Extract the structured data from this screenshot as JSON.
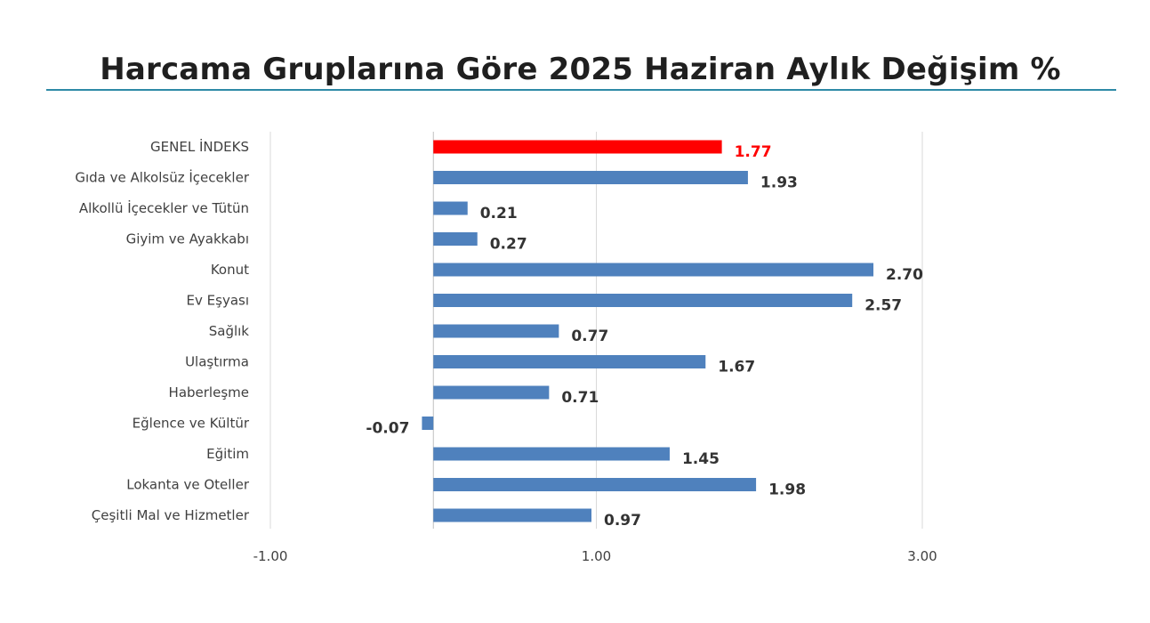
{
  "chart_data": {
    "type": "bar",
    "orientation": "horizontal",
    "title": "Harcama Gruplarına Göre 2025 Haziran Aylık Değişim %",
    "categories": [
      "GENEL İNDEKS",
      "Gıda ve Alkolsüz İçecekler",
      "Alkollü İçecekler ve Tütün",
      "Giyim ve Ayakkabı",
      "Konut",
      "Ev Eşyası",
      "Sağlık",
      "Ulaştırma",
      "Haberleşme",
      "Eğlence ve Kültür",
      "Eğitim",
      "Lokanta ve Oteller",
      "Çeşitli Mal ve Hizmetler"
    ],
    "values": [
      1.77,
      1.93,
      0.21,
      0.27,
      2.7,
      2.57,
      0.77,
      1.67,
      0.71,
      -0.07,
      1.45,
      1.98,
      0.97
    ],
    "value_labels": [
      "1.77",
      "1.93",
      "0.21",
      "0.27",
      "2.70",
      "2.57",
      "0.77",
      "1.67",
      "0.71",
      "-0.07",
      "1.45",
      "1.98",
      "0.97"
    ],
    "xlim": [
      -1,
      3
    ],
    "xticks": [
      -1,
      1,
      3
    ],
    "xtick_labels": [
      "-1.00",
      "1.00",
      "3.00"
    ],
    "grid": true,
    "legend": "none",
    "highlight_index": 0,
    "colors": {
      "bar": "#4f81bd",
      "highlight_bar": "#ff0000",
      "highlight_label": "#ff0000",
      "label": "#333333",
      "category_text": "#404040",
      "grid": "#d9d9d9",
      "axis": "#bfbfbf",
      "title_rule": "#2e8aa6"
    }
  }
}
